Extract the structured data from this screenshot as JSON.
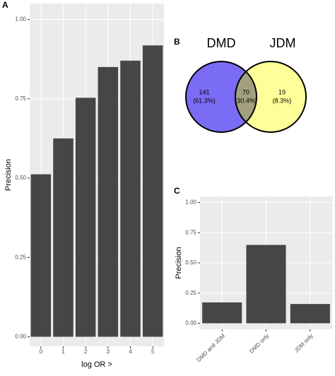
{
  "chart_data": [
    {
      "type": "bar",
      "panel_label": "A",
      "x_label": "log OR >",
      "y_label": "Precision",
      "categories": [
        "0",
        "1",
        "2",
        "3",
        "4",
        "5"
      ],
      "values": [
        0.512,
        0.625,
        0.753,
        0.85,
        0.87,
        0.918
      ],
      "color": "#464646",
      "background": "#ebebeb",
      "grid": true,
      "ylim": [
        -0.03,
        1.05
      ],
      "yticks": [
        {
          "value": 0,
          "label": "0.00"
        },
        {
          "value": 0.25,
          "label": "0.25"
        },
        {
          "value": 0.5,
          "label": "0.50"
        },
        {
          "value": 0.75,
          "label": "0.75"
        },
        {
          "value": 1,
          "label": "1.00"
        }
      ]
    },
    {
      "type": "venn",
      "panel_label": "B",
      "sets": [
        {
          "name": "DMD",
          "color": "#7b6cf6"
        },
        {
          "name": "JDM",
          "color": "#ffff99"
        }
      ],
      "overlap_color": "#a2a07e",
      "values": [
        141,
        70,
        19
      ],
      "value_labels": [
        "(61.3%)",
        "(30.4%)",
        "(8.3%)"
      ]
    },
    {
      "type": "bar",
      "panel_label": "C",
      "y_label": "Precision",
      "categories": [
        "DMD and JDM",
        "DMD only",
        "JDM only"
      ],
      "values": [
        0.173,
        0.649,
        0.16
      ],
      "color": "#464646",
      "background": "#ebebeb",
      "grid": true,
      "ylim": [
        -0.05,
        1.05
      ],
      "yticks": [
        {
          "value": 0,
          "label": "0.00"
        },
        {
          "value": 0.25,
          "label": "0.25"
        },
        {
          "value": 0.5,
          "label": "0.50"
        },
        {
          "value": 0.75,
          "label": "0.75"
        },
        {
          "value": 1,
          "label": "1.00"
        }
      ]
    }
  ]
}
